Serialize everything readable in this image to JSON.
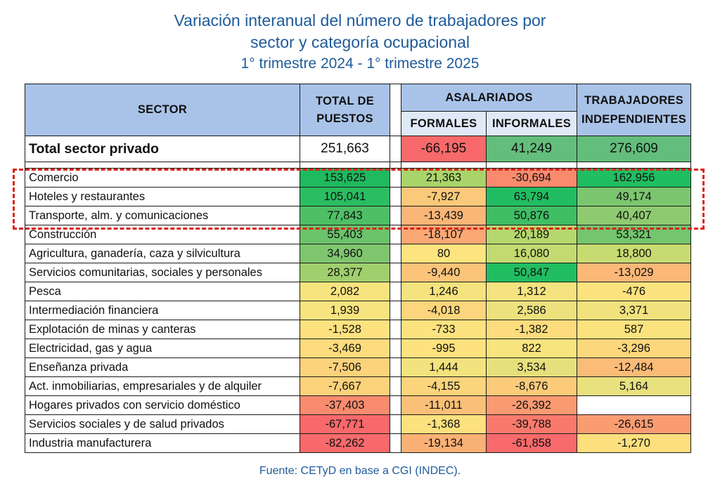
{
  "title": {
    "line1": "Variación interanual del número de trabajadores por",
    "line2": "sector y categoría ocupacional",
    "line3": "1° trimestre 2024 - 1° trimestre 2025"
  },
  "headers": {
    "sector": "SECTOR",
    "total_line1": "TOTAL DE",
    "total_line2": "PUESTOS",
    "asalariados": "ASALARIADOS",
    "formales": "FORMALES",
    "informales": "INFORMALES",
    "indep_line1": "TRABAJADORES",
    "indep_line2": "INDEPENDIENTES"
  },
  "total_row": {
    "sector": "Total sector privado",
    "total": "251,663",
    "formales": "-66,195",
    "informales": "41,249",
    "independientes": "276,609",
    "colors": [
      "#ffffff",
      "#f8696b",
      "#63be7b",
      "#63be7b"
    ]
  },
  "rows": [
    {
      "sector": "Comercio",
      "values": [
        "153,625",
        "21,363",
        "-30,694",
        "162,956"
      ],
      "colors": [
        "#1fb95e",
        "#a9d46a",
        "#f98a6e",
        "#21bd61"
      ]
    },
    {
      "sector": "Hoteles y restaurantes",
      "values": [
        "105,041",
        "-7,927",
        "63,794",
        "49,174"
      ],
      "colors": [
        "#2bbd62",
        "#fbc97a",
        "#22bd62",
        "#7cc66f"
      ]
    },
    {
      "sector": "Transporte, alm. y comunicaciones",
      "values": [
        "77,843",
        "-13,439",
        "50,876",
        "40,407"
      ],
      "colors": [
        "#4fbf66",
        "#fab676",
        "#3fbe64",
        "#8fca71"
      ]
    },
    {
      "sector": "Construcción",
      "values": [
        "55,403",
        "-18,107",
        "20,189",
        "53,321"
      ],
      "colors": [
        "#6cc36b",
        "#faa874",
        "#b6d76d",
        "#73c56e"
      ]
    },
    {
      "sector": "Agricultura, ganadería, caza y silvicultura",
      "values": [
        "34,960",
        "80",
        "16,080",
        "18,800"
      ],
      "colors": [
        "#7fc66f",
        "#fde47f",
        "#c2da70",
        "#c8db72"
      ]
    },
    {
      "sector": "Servicios comunitarias, sociales y personales",
      "values": [
        "28,377",
        "-9,440",
        "50,847",
        "-13,029"
      ],
      "colors": [
        "#a0cf6d",
        "#fbc479",
        "#21bd61",
        "#fbb877"
      ]
    },
    {
      "sector": "Pesca",
      "values": [
        "2,082",
        "1,246",
        "1,312",
        "-476"
      ],
      "colors": [
        "#f7e47f",
        "#f4e37e",
        "#f4e37e",
        "#fde37f"
      ]
    },
    {
      "sector": "Intermediación financiera",
      "values": [
        "1,939",
        "-4,018",
        "2,586",
        "3,371"
      ],
      "colors": [
        "#f7e47f",
        "#fcd57c",
        "#ece17d",
        "#f1e27e"
      ]
    },
    {
      "sector": "Explotación de minas y canteras",
      "values": [
        "-1,528",
        "-733",
        "-1,382",
        "587"
      ],
      "colors": [
        "#fde27f",
        "#fde37f",
        "#fddc7d",
        "#fae37f"
      ]
    },
    {
      "sector": "Electricidad, gas y agua",
      "values": [
        "-3,469",
        "-995",
        "822",
        "-3,296"
      ],
      "colors": [
        "#fcdc7d",
        "#fde27f",
        "#f7e47f",
        "#fcd77c"
      ]
    },
    {
      "sector": "Enseñanza privada",
      "values": [
        "-7,506",
        "1,444",
        "3,534",
        "-12,484"
      ],
      "colors": [
        "#fcd27b",
        "#f3e37e",
        "#e6e07c",
        "#fbbc78"
      ]
    },
    {
      "sector": "Act. inmobiliarias, empresariales y de alquiler",
      "values": [
        "-7,667",
        "-4,155",
        "-8,676",
        "5,164"
      ],
      "colors": [
        "#fcd27b",
        "#fcd47b",
        "#fccb7a",
        "#e8e17d"
      ]
    },
    {
      "sector": "Hogares privados con servicio doméstico",
      "values": [
        "-37,403",
        "-11,011",
        "-26,392",
        ""
      ],
      "colors": [
        "#f98b6f",
        "#fbc078",
        "#fa9a71",
        "#ffffff"
      ]
    },
    {
      "sector": "Servicios sociales y de salud privados",
      "values": [
        "-67,771",
        "-1,368",
        "-39,788",
        "-26,615"
      ],
      "colors": [
        "#f8696b",
        "#fde17e",
        "#f97a6d",
        "#fa9c72"
      ]
    },
    {
      "sector": "Industria manufacturera",
      "values": [
        "-82,262",
        "-19,134",
        "-61,858",
        "-1,270"
      ],
      "colors": [
        "#f8696b",
        "#fab175",
        "#f86a6b",
        "#fddf7e"
      ]
    }
  ],
  "source": "Fuente: CETyD en base a CGI (INDEC)."
}
